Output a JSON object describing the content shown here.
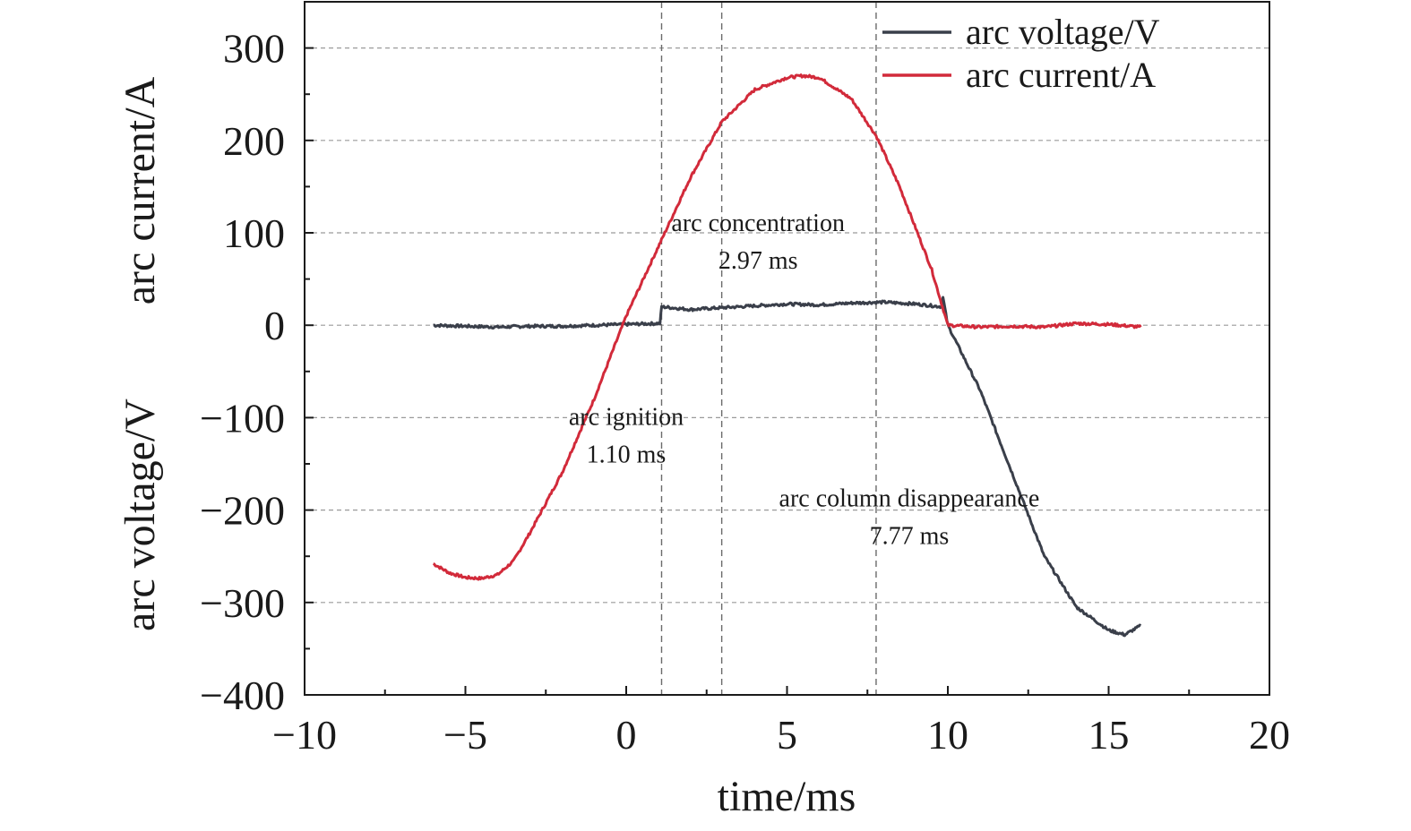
{
  "chart_data": {
    "type": "line",
    "xlabel": "time/ms",
    "ylabel_top": "arc current/A",
    "ylabel_bottom": "arc voltage/V",
    "xlim": [
      -10,
      20
    ],
    "ylim": [
      -400,
      350
    ],
    "x_ticks": [
      -10,
      -5,
      0,
      5,
      10,
      15,
      20
    ],
    "x_tick_labels": [
      "−10",
      "−5",
      "0",
      "5",
      "10",
      "15",
      "20"
    ],
    "y_ticks": [
      -400,
      -300,
      -200,
      -100,
      0,
      100,
      200,
      300
    ],
    "y_tick_labels": [
      "−400",
      "−300",
      "−200",
      "−100",
      "0",
      "100",
      "200",
      "300"
    ],
    "grid": true,
    "legend_position": "top-right",
    "colors": {
      "voltage": "#3a3f4a",
      "current": "#d22a3a"
    },
    "series": [
      {
        "name": "arc voltage/V",
        "color": "#3a3f4a",
        "points": [
          [
            -6,
            0
          ],
          [
            -5,
            -1
          ],
          [
            -4,
            -2
          ],
          [
            -3,
            -1
          ],
          [
            -2,
            -1
          ],
          [
            -1,
            0
          ],
          [
            0,
            1
          ],
          [
            1.05,
            2
          ],
          [
            1.1,
            20
          ],
          [
            2,
            17
          ],
          [
            3,
            19
          ],
          [
            4,
            21
          ],
          [
            5,
            23
          ],
          [
            6,
            22
          ],
          [
            7,
            24
          ],
          [
            8,
            25
          ],
          [
            9,
            23
          ],
          [
            9.8,
            20
          ],
          [
            9.85,
            30
          ],
          [
            10,
            0
          ],
          [
            11,
            -70
          ],
          [
            12,
            -160
          ],
          [
            13,
            -250
          ],
          [
            14,
            -305
          ],
          [
            15,
            -330
          ],
          [
            15.5,
            -335
          ],
          [
            16,
            -325
          ]
        ]
      },
      {
        "name": "arc current/A",
        "color": "#d22a3a",
        "points": [
          [
            -6,
            -258
          ],
          [
            -5.5,
            -268
          ],
          [
            -5,
            -273
          ],
          [
            -4.5,
            -274
          ],
          [
            -4,
            -270
          ],
          [
            -3.5,
            -255
          ],
          [
            -3,
            -225
          ],
          [
            -2,
            -160
          ],
          [
            -1,
            -80
          ],
          [
            0,
            10
          ],
          [
            1,
            85
          ],
          [
            2,
            160
          ],
          [
            2.97,
            220
          ],
          [
            4,
            255
          ],
          [
            5,
            268
          ],
          [
            5.5,
            270
          ],
          [
            6,
            268
          ],
          [
            7,
            245
          ],
          [
            7.77,
            205
          ],
          [
            8.5,
            150
          ],
          [
            9.5,
            60
          ],
          [
            10,
            0
          ],
          [
            11,
            -2
          ],
          [
            12,
            -1
          ],
          [
            13,
            -2
          ],
          [
            14,
            2
          ],
          [
            15,
            1
          ],
          [
            16,
            -2
          ]
        ]
      }
    ],
    "vertical_markers": [
      1.1,
      2.97,
      7.77
    ],
    "annotations": [
      {
        "line1": "arc ignition",
        "line2": "1.10 ms",
        "x": 0,
        "y": -108
      },
      {
        "line1": "arc concentration",
        "line2": "2.97 ms",
        "x": 4.1,
        "y": 102
      },
      {
        "line1": "arc column disappearance",
        "line2": "7.77 ms",
        "x": 8.8,
        "y": -196
      }
    ]
  }
}
